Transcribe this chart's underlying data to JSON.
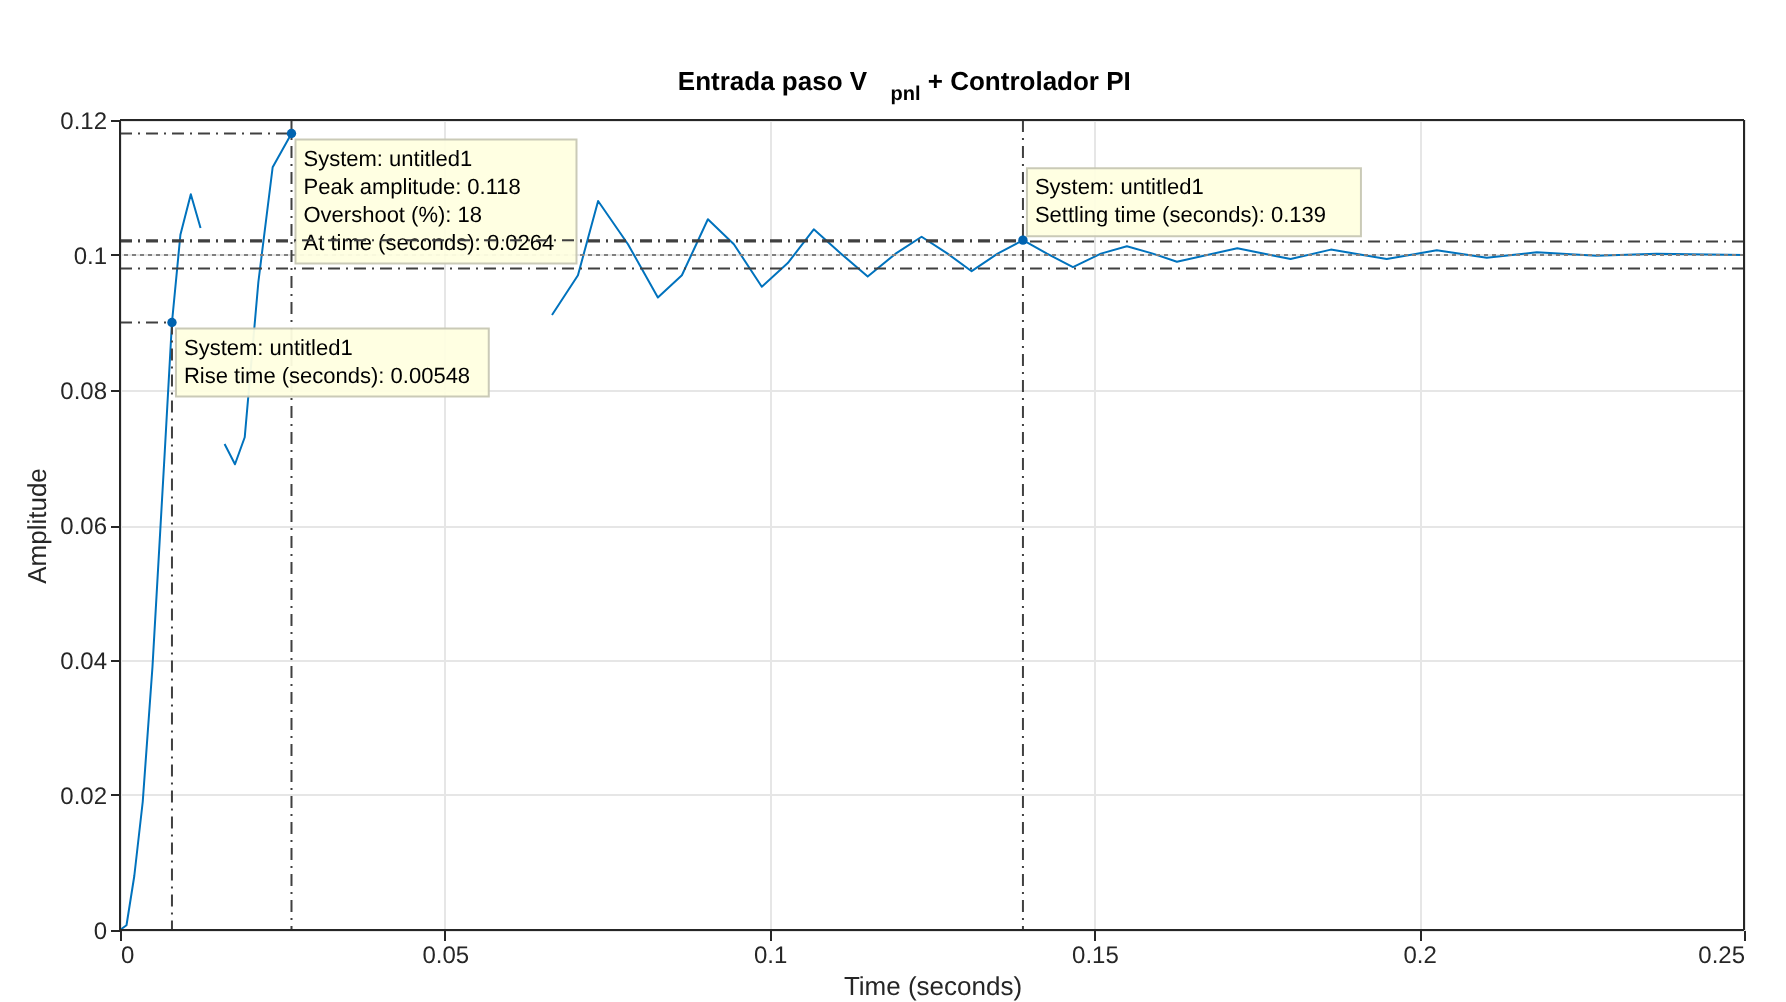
{
  "chart_data": {
    "type": "line",
    "title": "Entrada paso V$_{pnl}$ + Controlador PI",
    "xlabel": "Time (seconds)",
    "ylabel": "Amplitude",
    "xlim": [
      0,
      0.25
    ],
    "ylim": [
      0,
      0.12
    ],
    "xticks": [
      0,
      0.05,
      0.1,
      0.15,
      0.2,
      0.25
    ],
    "yticks": [
      0,
      0.02,
      0.04,
      0.06,
      0.08,
      0.1,
      0.12
    ],
    "grid": true,
    "line_style": "solid",
    "series": [
      {
        "color": "#0072bd",
        "x": [
          0,
          0.001,
          0.0022,
          0.0035,
          0.005,
          0.0069,
          0.008,
          0.0093,
          0.0109,
          0.0124,
          0.0145,
          0.0161,
          0.0177,
          0.0192,
          0.0213,
          0.0235,
          0.0264,
          0.029,
          0.032,
          0.0342,
          0.0367,
          0.0389,
          0.0429,
          0.0468,
          0.0496,
          0.0514,
          0.0542,
          0.0582,
          0.0622,
          0.0665,
          0.0705,
          0.0736,
          0.0782,
          0.0828,
          0.0865,
          0.0905,
          0.0945,
          0.0988,
          0.1028,
          0.1068,
          0.111,
          0.1151,
          0.1194,
          0.1234,
          0.1274,
          0.1311,
          0.1351,
          0.139,
          0.1427,
          0.1467,
          0.151,
          0.155,
          0.159,
          0.1627,
          0.172,
          0.1802,
          0.1864,
          0.195,
          0.2027,
          0.2104,
          0.2181,
          0.2273,
          0.2365,
          0.25
        ],
        "values": [
          0,
          0.0007,
          0.008,
          0.019,
          0.039,
          0.071,
          0.09,
          0.103,
          0.109,
          0.104,
          null,
          0.072,
          0.069,
          0.073,
          0.096,
          0.113,
          0.118,
          null,
          null,
          null,
          null,
          null,
          null,
          null,
          null,
          null,
          null,
          null,
          null,
          0.0911,
          0.097,
          0.108,
          0.1016,
          0.0937,
          0.097,
          0.1053,
          0.1016,
          0.0953,
          0.0988,
          0.1038,
          0.1002,
          0.0968,
          0.1002,
          0.1027,
          0.1002,
          0.0976,
          0.1002,
          0.1022,
          0.1002,
          0.0982,
          0.1002,
          0.1013,
          0.1002,
          0.099,
          0.101,
          0.0994,
          0.1008,
          0.0994,
          0.1007,
          0.0996,
          0.1004,
          0.0999,
          0.1002,
          0.1
        ]
      }
    ],
    "ref_lines": [
      {
        "axis": "y",
        "value": 0.102,
        "line_style": "dashdot",
        "color": "#404040"
      },
      {
        "axis": "y",
        "value": 0.098,
        "line_style": "dashdot",
        "color": "#404040"
      },
      {
        "axis": "y",
        "value": 0.1,
        "line_style": "dotted",
        "color": "#808080"
      },
      {
        "axis": "x",
        "value": 0.0264,
        "line_style": "dashdot",
        "color": "#404040"
      },
      {
        "axis": "x",
        "value": 0.139,
        "line_style": "dashdot",
        "color": "#404040"
      }
    ],
    "annotations": [
      {
        "text": "System: untitled1\nRise time (seconds): 0.00548",
        "x": 0.008,
        "y": 0.09
      },
      {
        "text": "System: untitled1\nPeak amplitude: 0.118\nOvershoot (%): 18\nAt time (seconds): 0.0264",
        "x": 0.0264,
        "y": 0.118
      },
      {
        "text": "System: untitled1\nSettling time (seconds): 0.139",
        "x": 0.139,
        "y": 0.1022
      }
    ]
  }
}
